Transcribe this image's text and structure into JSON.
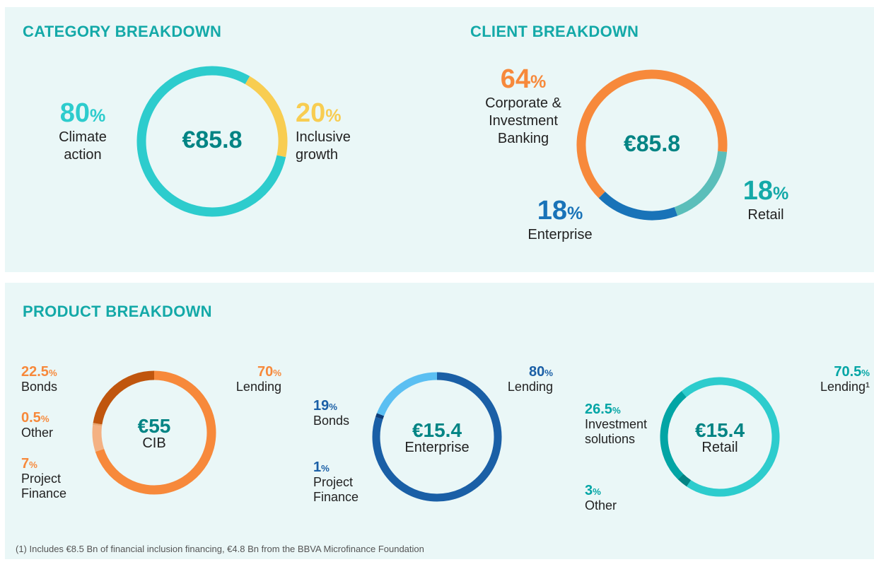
{
  "chart_data": [
    {
      "type": "donut",
      "title": "CATEGORY BREAKDOWN",
      "center_value": "€85.8",
      "categories": [
        "Climate action",
        "Inclusive growth"
      ],
      "values": [
        80,
        20
      ],
      "value_labels": [
        "80%",
        "20%"
      ],
      "colors": [
        "#2dcccd",
        "#f8cd51"
      ]
    },
    {
      "type": "donut",
      "title": "CLIENT BREAKDOWN",
      "center_value": "€85.8",
      "categories": [
        "Corporate & Investment Banking",
        "Retail",
        "Enterprise"
      ],
      "values": [
        64,
        18,
        18
      ],
      "value_labels": [
        "64%",
        "18%",
        "18%"
      ],
      "colors": [
        "#f7893b",
        "#5bbeba",
        "#1973b8"
      ],
      "label_colors": [
        "#f7893b",
        "#14a9a8",
        "#1973b8"
      ]
    },
    {
      "type": "donut",
      "center_value": "€55",
      "center_label": "CIB",
      "categories": [
        "Lending",
        "Project Finance",
        "Other",
        "Bonds"
      ],
      "values": [
        70,
        7,
        0.5,
        22.5
      ],
      "value_labels": [
        "70%",
        "7%",
        "0.5%",
        "22.5%"
      ],
      "colors": [
        "#f7893b",
        "#f4b183",
        "#e9a36b",
        "#c0560e"
      ],
      "label_color": "#f7893b"
    },
    {
      "type": "donut",
      "center_value": "€15.4",
      "center_label": "Enterprise",
      "categories": [
        "Lending",
        "Project Finance",
        "Bonds"
      ],
      "values": [
        80,
        1,
        19
      ],
      "value_labels": [
        "80%",
        "1%",
        "19%"
      ],
      "colors": [
        "#1a5fa6",
        "#0e3d78",
        "#5bbff2"
      ],
      "label_color": "#1a5fa6"
    },
    {
      "type": "donut",
      "center_value": "€15.4",
      "center_label": "Retail",
      "categories": [
        "Lending¹",
        "Other",
        "Investment solutions"
      ],
      "values": [
        70.5,
        3,
        26.5
      ],
      "value_labels": [
        "70.5%",
        "3%",
        "26.5%"
      ],
      "colors": [
        "#2dcccd",
        "#028484",
        "#02a5a5"
      ],
      "label_color": "#02a5a5"
    }
  ],
  "section_title": "PRODUCT BREAKDOWN",
  "footnote": "(1) Includes €8.5 Bn of financial inclusion financing, €4.8 Bn from the BBVA Microfinance Foundation"
}
